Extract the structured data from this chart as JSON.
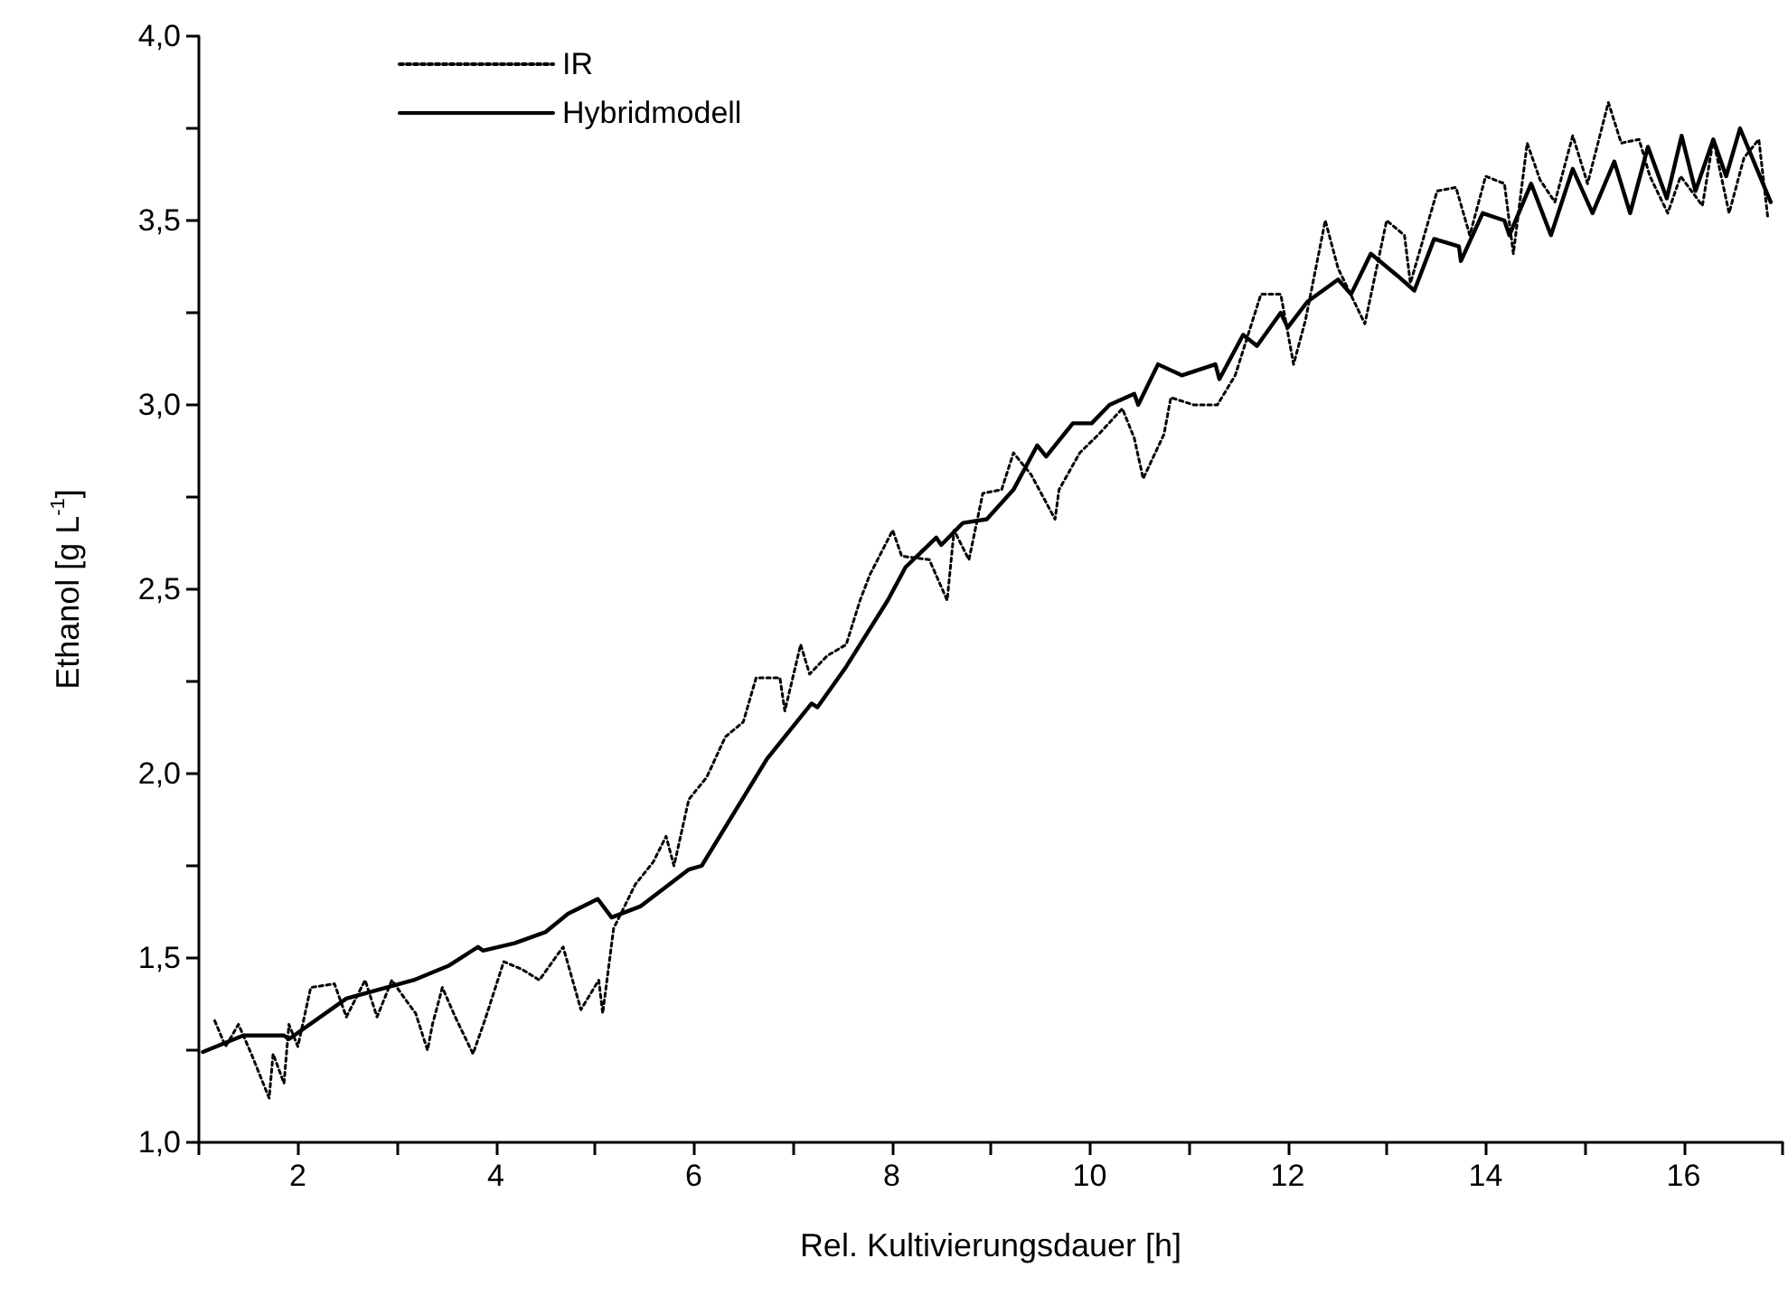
{
  "chart_data": {
    "type": "line",
    "xlabel": "Rel. Kultivierungsdauer [h]",
    "ylabel": "Ethanol [g L$^{-1}$]",
    "xlim": [
      1,
      17
    ],
    "ylim": [
      1,
      4
    ],
    "xticks": [
      {
        "value": 1,
        "label": null
      },
      2,
      {
        "value": 3,
        "label": null
      },
      4,
      {
        "value": 5,
        "label": null
      },
      6,
      {
        "value": 7,
        "label": null
      },
      8,
      {
        "value": 9,
        "label": null
      },
      10,
      {
        "value": 11,
        "label": null
      },
      12,
      {
        "value": 13,
        "label": null
      },
      14,
      {
        "value": 15,
        "label": null
      },
      16,
      {
        "value": 17,
        "label": null
      }
    ],
    "yticks": [
      {
        "value": 1,
        "label": "1,0"
      },
      {
        "value": 1.25,
        "label": null
      },
      {
        "value": 1.5,
        "label": "1,5"
      },
      {
        "value": 1.75,
        "label": null
      },
      {
        "value": 2,
        "label": "2,0"
      },
      {
        "value": 2.25,
        "label": null
      },
      {
        "value": 2.5,
        "label": "2,5"
      },
      {
        "value": 2.75,
        "label": null
      },
      {
        "value": 3,
        "label": "3,0"
      },
      {
        "value": 3.25,
        "label": null
      },
      {
        "value": 3.5,
        "label": "3,5"
      },
      {
        "value": 3.75,
        "label": null
      },
      {
        "value": 4,
        "label": "4,0"
      }
    ],
    "grid": false,
    "legend": "top left",
    "marker": "none",
    "series": [
      {
        "name": "IR",
        "color": "#000000",
        "line_style": "dotted",
        "x": [
          1.16,
          1.27,
          1.4,
          1.53,
          1.71,
          1.75,
          1.86,
          1.91,
          2.0,
          2.13,
          2.37,
          2.49,
          2.68,
          2.8,
          2.95,
          3.08,
          3.19,
          3.31,
          3.36,
          3.46,
          3.59,
          3.77,
          3.9,
          4.08,
          4.26,
          4.44,
          4.68,
          4.86,
          5.04,
          5.08,
          5.19,
          5.41,
          5.59,
          5.72,
          5.8,
          5.95,
          6.13,
          6.32,
          6.5,
          6.63,
          6.87,
          6.92,
          7.08,
          7.17,
          7.35,
          7.54,
          7.68,
          7.78,
          8.01,
          8.1,
          8.38,
          8.56,
          8.63,
          8.78,
          8.92,
          9.11,
          9.23,
          9.41,
          9.65,
          9.69,
          9.9,
          10.09,
          10.33,
          10.45,
          10.54,
          10.75,
          10.82,
          11.05,
          11.29,
          11.47,
          11.73,
          11.93,
          12.06,
          12.18,
          12.38,
          12.51,
          12.78,
          13.0,
          13.18,
          13.24,
          13.51,
          13.7,
          13.84,
          14.0,
          14.19,
          14.28,
          14.42,
          14.55,
          14.7,
          14.88,
          15.03,
          15.24,
          15.37,
          15.55,
          15.66,
          15.84,
          15.97,
          16.19,
          16.3,
          16.46,
          16.61,
          16.76,
          16.85
        ],
        "values": [
          1.33,
          1.26,
          1.32,
          1.24,
          1.12,
          1.24,
          1.16,
          1.32,
          1.26,
          1.42,
          1.43,
          1.34,
          1.44,
          1.34,
          1.44,
          1.39,
          1.35,
          1.25,
          1.32,
          1.42,
          1.34,
          1.24,
          1.34,
          1.49,
          1.47,
          1.44,
          1.53,
          1.36,
          1.44,
          1.35,
          1.58,
          1.7,
          1.76,
          1.83,
          1.75,
          1.93,
          1.99,
          2.1,
          2.14,
          2.26,
          2.26,
          2.17,
          2.35,
          2.27,
          2.32,
          2.35,
          2.47,
          2.54,
          2.66,
          2.59,
          2.58,
          2.47,
          2.66,
          2.58,
          2.76,
          2.77,
          2.87,
          2.81,
          2.69,
          2.77,
          2.87,
          2.92,
          2.99,
          2.91,
          2.8,
          2.92,
          3.02,
          3.0,
          3.0,
          3.08,
          3.3,
          3.3,
          3.11,
          3.23,
          3.5,
          3.37,
          3.22,
          3.5,
          3.46,
          3.33,
          3.58,
          3.59,
          3.46,
          3.62,
          3.6,
          3.41,
          3.71,
          3.61,
          3.55,
          3.73,
          3.6,
          3.82,
          3.71,
          3.72,
          3.62,
          3.52,
          3.62,
          3.54,
          3.72,
          3.52,
          3.67,
          3.72,
          3.51
        ]
      },
      {
        "name": "Hybridmodell",
        "color": "#000000",
        "line_style": "solid",
        "x": [
          1.04,
          1.45,
          1.86,
          1.91,
          2.49,
          3.17,
          3.53,
          3.82,
          3.87,
          4.19,
          4.5,
          4.73,
          5.03,
          5.17,
          5.46,
          5.95,
          6.08,
          6.74,
          7.19,
          7.25,
          7.54,
          7.96,
          8.14,
          8.45,
          8.5,
          8.72,
          8.96,
          9.23,
          9.47,
          9.56,
          9.83,
          10.02,
          10.2,
          10.45,
          10.49,
          10.69,
          10.93,
          11.27,
          11.31,
          11.55,
          11.69,
          11.93,
          12.0,
          12.2,
          12.51,
          12.64,
          12.84,
          13.11,
          13.28,
          13.48,
          13.73,
          13.75,
          13.97,
          14.19,
          14.24,
          14.46,
          14.66,
          14.88,
          15.08,
          15.3,
          15.46,
          15.64,
          15.83,
          15.98,
          16.12,
          16.3,
          16.43,
          16.57,
          16.74,
          16.88
        ],
        "values": [
          1.245,
          1.29,
          1.29,
          1.28,
          1.39,
          1.44,
          1.48,
          1.53,
          1.52,
          1.54,
          1.57,
          1.62,
          1.66,
          1.61,
          1.64,
          1.74,
          1.75,
          2.04,
          2.19,
          2.18,
          2.29,
          2.47,
          2.56,
          2.64,
          2.62,
          2.68,
          2.69,
          2.77,
          2.89,
          2.86,
          2.95,
          2.95,
          3.0,
          3.03,
          3.0,
          3.11,
          3.08,
          3.11,
          3.07,
          3.19,
          3.16,
          3.25,
          3.21,
          3.28,
          3.34,
          3.3,
          3.41,
          3.35,
          3.31,
          3.45,
          3.43,
          3.39,
          3.52,
          3.5,
          3.46,
          3.6,
          3.46,
          3.64,
          3.52,
          3.66,
          3.52,
          3.7,
          3.56,
          3.73,
          3.58,
          3.72,
          3.62,
          3.75,
          3.64,
          3.55
        ]
      }
    ]
  }
}
